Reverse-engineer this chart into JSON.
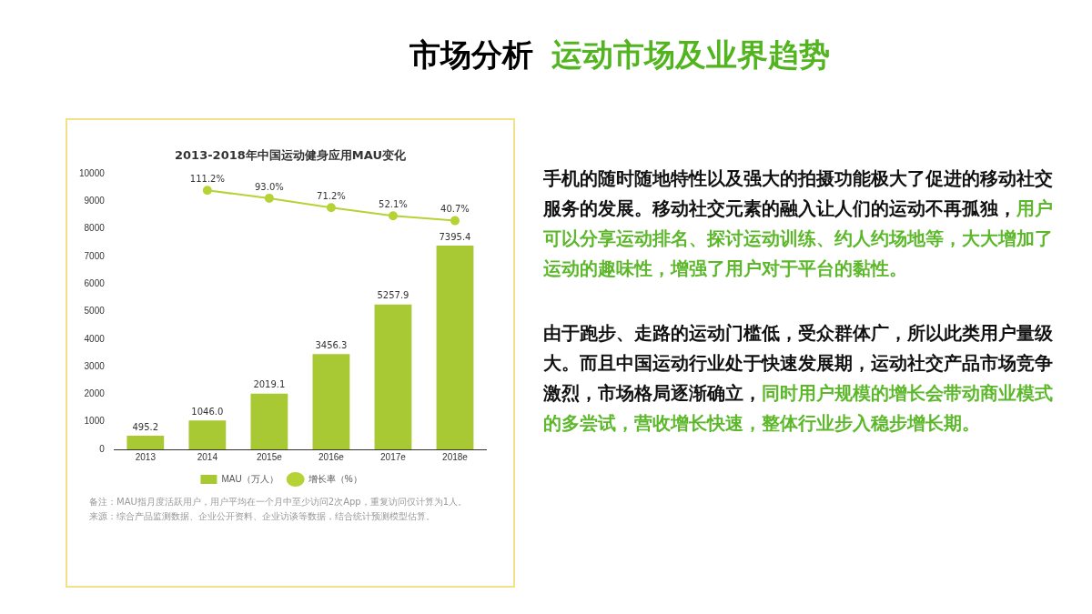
{
  "chart_data": {
    "type": "bar",
    "title": "2013-2018年中国运动健身应用MAU变化",
    "categories": [
      "2013",
      "2014",
      "2015e",
      "2016e",
      "2017e",
      "2018e"
    ],
    "series": [
      {
        "name": "MAU（万人）",
        "color": "#a8c934",
        "values": [
          495.2,
          1046,
          2019.1,
          3456.3,
          5257.9,
          7395.4
        ],
        "value_labels": [
          "495.2",
          "1046.0",
          "2019.1",
          "3456.3",
          "5257.9",
          "7395.4"
        ]
      },
      {
        "name": "增长率（%）",
        "type": "line",
        "axis": "y2",
        "color": "#b5d334",
        "values": [
          null,
          111.2,
          93.0,
          71.2,
          52.1,
          40.7
        ],
        "value_labels": [
          null,
          "111.2%",
          "93.0%",
          "71.2%",
          "52.1%",
          "40.7%"
        ]
      }
    ],
    "ylim": [
      0,
      10000
    ],
    "yticks": [
      0,
      1000,
      2000,
      3000,
      4000,
      5000,
      6000,
      7000,
      8000,
      9000,
      10000
    ],
    "legend": "bottom",
    "grid": false,
    "marker": "circle",
    "annotations": [
      "市场分析",
      "运动市场及业界趋势",
      "手机的随时随地特性以及强大的拍摄功能极大了促进的移动社交服务的发展。移动社交元素的融入让人们的运动不再孤独，",
      "用户可以分享运动排名、探讨运动训练、约人约场地等，大大增加了运动的趣味性，增强了用户对于平台的黏性。",
      "由于跑步、走路的运动门槛低，受众群体广，所以此类用户量级大。而且中国运动行业处于快速发展期，运动社交产品市场竞争激烈，市场格局逐渐确立，",
      "同时用户规模的增长会带动商业模式的多尝试，营收增长快速，整体行业步入稳步增长期。",
      "备注：MAU指月度活跃用户，用户平均在一个月中至少访问2次App，重复访问仅计算为1人。",
      "来源：综合产品监测数据、企业公开资料、企业访谈等数据，结合统计预测模型估算。"
    ]
  }
}
